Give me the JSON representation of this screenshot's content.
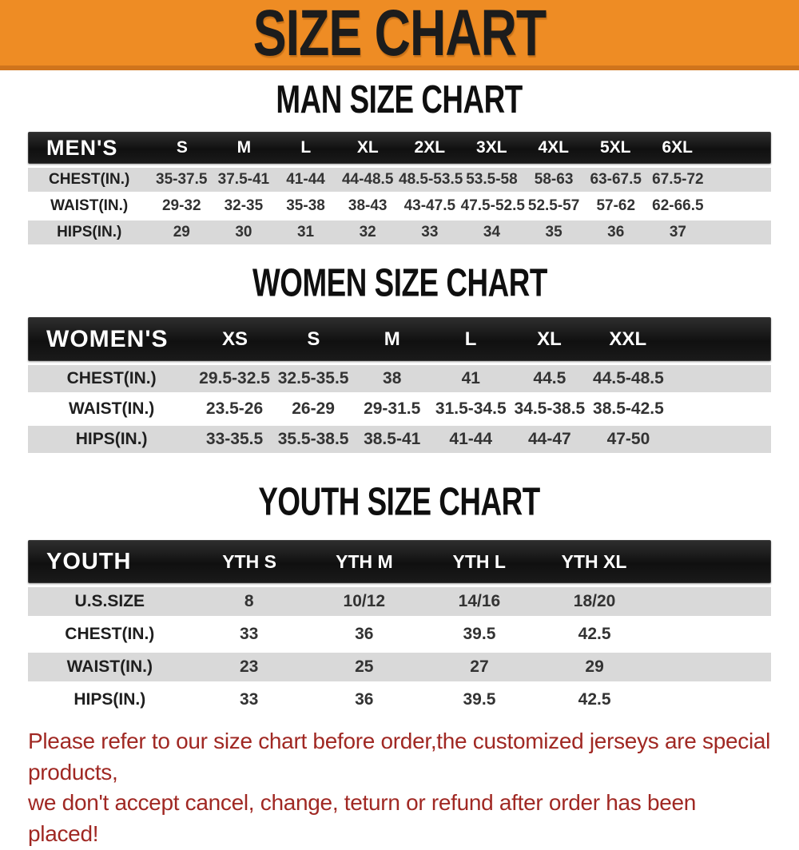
{
  "banner": {
    "title": "SIZE CHART"
  },
  "palette": {
    "banner_bg": "#ee8c24",
    "banner_edge": "#cf741c",
    "header_bar_bg": "#161616",
    "row_stripe": "#d9d9d9",
    "footer_text": "#a02823"
  },
  "men": {
    "heading": "MAN SIZE CHART",
    "label": "MEN'S",
    "sizes": [
      "S",
      "M",
      "L",
      "XL",
      "2XL",
      "3XL",
      "4XL",
      "5XL",
      "6XL"
    ],
    "rows": [
      {
        "label": "CHEST(IN.)",
        "values": [
          "35-37.5",
          "37.5-41",
          "41-44",
          "44-48.5",
          "48.5-53.5",
          "53.5-58",
          "58-63",
          "63-67.5",
          "67.5-72"
        ]
      },
      {
        "label": "WAIST(IN.)",
        "values": [
          "29-32",
          "32-35",
          "35-38",
          "38-43",
          "43-47.5",
          "47.5-52.5",
          "52.5-57",
          "57-62",
          "62-66.5"
        ]
      },
      {
        "label": "HIPS(IN.)",
        "values": [
          "29",
          "30",
          "31",
          "32",
          "33",
          "34",
          "35",
          "36",
          "37"
        ]
      }
    ]
  },
  "women": {
    "heading": "WOMEN SIZE CHART",
    "label": "WOMEN'S",
    "sizes": [
      "XS",
      "S",
      "M",
      "L",
      "XL",
      "XXL"
    ],
    "rows": [
      {
        "label": "CHEST(IN.)",
        "values": [
          "29.5-32.5",
          "32.5-35.5",
          "38",
          "41",
          "44.5",
          "44.5-48.5"
        ]
      },
      {
        "label": "WAIST(IN.)",
        "values": [
          "23.5-26",
          "26-29",
          "29-31.5",
          "31.5-34.5",
          "34.5-38.5",
          "38.5-42.5"
        ]
      },
      {
        "label": "HIPS(IN.)",
        "values": [
          "33-35.5",
          "35.5-38.5",
          "38.5-41",
          "41-44",
          "44-47",
          "47-50"
        ]
      }
    ]
  },
  "youth": {
    "heading": "YOUTH SIZE CHART",
    "label": "YOUTH",
    "sizes": [
      "YTH S",
      "YTH M",
      "YTH L",
      "YTH XL"
    ],
    "rows": [
      {
        "label": "U.S.SIZE",
        "values": [
          "8",
          "10/12",
          "14/16",
          "18/20"
        ]
      },
      {
        "label": "CHEST(IN.)",
        "values": [
          "33",
          "36",
          "39.5",
          "42.5"
        ]
      },
      {
        "label": "WAIST(IN.)",
        "values": [
          "23",
          "25",
          "27",
          "29"
        ]
      },
      {
        "label": "HIPS(IN.)",
        "values": [
          "33",
          "36",
          "39.5",
          "42.5"
        ]
      }
    ]
  },
  "footer": {
    "line1": "Please refer to our size chart before order,the customized jerseys are special products,",
    "line2": "we don't accept cancel, change, teturn or refund after order has been placed!"
  }
}
